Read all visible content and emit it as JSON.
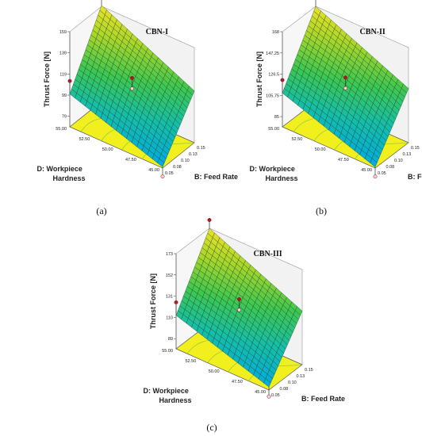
{
  "chart_data": [
    {
      "type": "surface3d",
      "panel_label": "(a)",
      "model_label": "CBN-I",
      "zlabel": "Thrust Force [N]",
      "xlabel": "B: Feed Rate",
      "ylabel_line1": "D: Workpiece",
      "ylabel_line2": "Hardness",
      "x_ticks": [
        "0.05",
        "0.08",
        "0.10",
        "0.13",
        "0.15"
      ],
      "y_ticks": [
        "45.00",
        "47.50",
        "50.00",
        "52.50",
        "55.00"
      ],
      "z_ticks": [
        "79",
        "99",
        "119",
        "139",
        "159"
      ],
      "xlim": [
        0.05,
        0.15
      ],
      "ylim": [
        45,
        55
      ],
      "zlim": [
        69,
        159
      ],
      "corners": {
        "x0y0": 70,
        "x1y0": 118,
        "x0y1": 100,
        "x1y1": 160
      }
    },
    {
      "type": "surface3d",
      "panel_label": "(b)",
      "model_label": "CBN-II",
      "zlabel": "Thrust Force [N]",
      "xlabel": "B: Feed Rate",
      "ylabel_line1": "D: Workpiece",
      "ylabel_line2": "Hardness",
      "x_ticks": [
        "0.05",
        "0.08",
        "0.10",
        "0.13",
        "0.15"
      ],
      "y_ticks": [
        "45.00",
        "47.50",
        "50.00",
        "52.50",
        "55.00"
      ],
      "z_ticks": [
        "85",
        "105.75",
        "126.5",
        "147.25",
        "168"
      ],
      "xlim": [
        0.05,
        0.15
      ],
      "ylim": [
        45,
        55
      ],
      "zlim": [
        75,
        168
      ],
      "corners": {
        "x0y0": 76,
        "x1y0": 128,
        "x0y1": 108,
        "x1y1": 168
      }
    },
    {
      "type": "surface3d",
      "panel_label": "(c)",
      "model_label": "CBN-III",
      "zlabel": "Thrust Force [N]",
      "xlabel": "B: Feed Rate",
      "ylabel_line1": "D: Workpiece",
      "ylabel_line2": "Hardness",
      "x_ticks": [
        "0.05",
        "0.08",
        "0.10",
        "0.13",
        "0.15"
      ],
      "y_ticks": [
        "45.00",
        "47.50",
        "50.00",
        "52.50",
        "55.00"
      ],
      "z_ticks": [
        "89",
        "110",
        "131",
        "152",
        "173"
      ],
      "xlim": [
        0.05,
        0.15
      ],
      "ylim": [
        45,
        55
      ],
      "zlim": [
        79,
        173
      ],
      "corners": {
        "x0y0": 82,
        "x1y0": 132,
        "x0y1": 112,
        "x1y1": 173
      }
    }
  ]
}
